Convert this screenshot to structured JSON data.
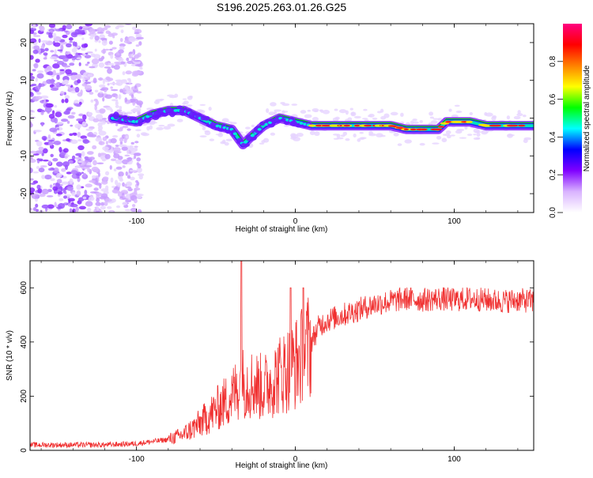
{
  "title": "S196.2025.263.01.26.G25",
  "chart_data": [
    {
      "type": "heatmap",
      "name": "spectrogram",
      "xlabel": "Height of straight line (km)",
      "ylabel": "Frequency (Hz)",
      "xlim": [
        -167,
        150
      ],
      "ylim": [
        -25,
        25
      ],
      "x_ticks": [
        -100,
        0,
        100
      ],
      "y_ticks": [
        -20,
        -10,
        0,
        10,
        20
      ],
      "colorbar": {
        "label": "Normalized spectral amplitude",
        "range": [
          0,
          1
        ],
        "ticks": [
          0.0,
          0.2,
          0.4,
          0.6,
          0.8
        ],
        "tick_labels": [
          "0.0",
          "0.2",
          "0.4",
          "0.6",
          "0.8"
        ],
        "colors": [
          "#ffffff",
          "#d9b3ff",
          "#8000ff",
          "#0000ff",
          "#00ffff",
          "#00ff00",
          "#ffff00",
          "#ff8000",
          "#ff0000",
          "#ff0080"
        ]
      },
      "ridge": {
        "x": [
          -115,
          -100,
          -90,
          -80,
          -70,
          -60,
          -50,
          -40,
          -33,
          -28,
          -20,
          -10,
          0,
          10,
          20,
          40,
          60,
          70,
          80,
          90,
          95,
          100,
          110,
          120,
          130,
          140,
          150
        ],
        "freq": [
          0,
          -1,
          1,
          2,
          2,
          0,
          -2,
          -3,
          -7,
          -5,
          -2,
          0,
          -1,
          -2,
          -2,
          -2,
          -2,
          -3,
          -3,
          -3,
          -1,
          -1,
          -1,
          -2,
          -2,
          -2,
          -2
        ]
      }
    },
    {
      "type": "line",
      "name": "snr",
      "xlabel": "Height of straight line (km)",
      "ylabel": "SNR (10 * v/v)",
      "xlim": [
        -167,
        150
      ],
      "ylim": [
        0,
        700
      ],
      "x_ticks": [
        -100,
        0,
        100
      ],
      "y_ticks": [
        0,
        200,
        400,
        600
      ],
      "color": "#f03030",
      "envelope": {
        "x": [
          -167,
          -120,
          -100,
          -80,
          -70,
          -60,
          -50,
          -40,
          -34,
          -30,
          -20,
          -10,
          0,
          5,
          10,
          15,
          20,
          30,
          40,
          50,
          60,
          70,
          80,
          90,
          100,
          110,
          120,
          130,
          140,
          150
        ],
        "y": [
          20,
          20,
          25,
          40,
          60,
          100,
          150,
          200,
          250,
          250,
          230,
          280,
          320,
          350,
          400,
          460,
          480,
          500,
          520,
          540,
          550,
          560,
          555,
          560,
          555,
          560,
          555,
          550,
          555,
          550
        ]
      },
      "spikes": [
        {
          "x": -34,
          "y": 700
        },
        {
          "x": -3,
          "y": 600
        },
        {
          "x": 5,
          "y": 600
        }
      ]
    }
  ]
}
